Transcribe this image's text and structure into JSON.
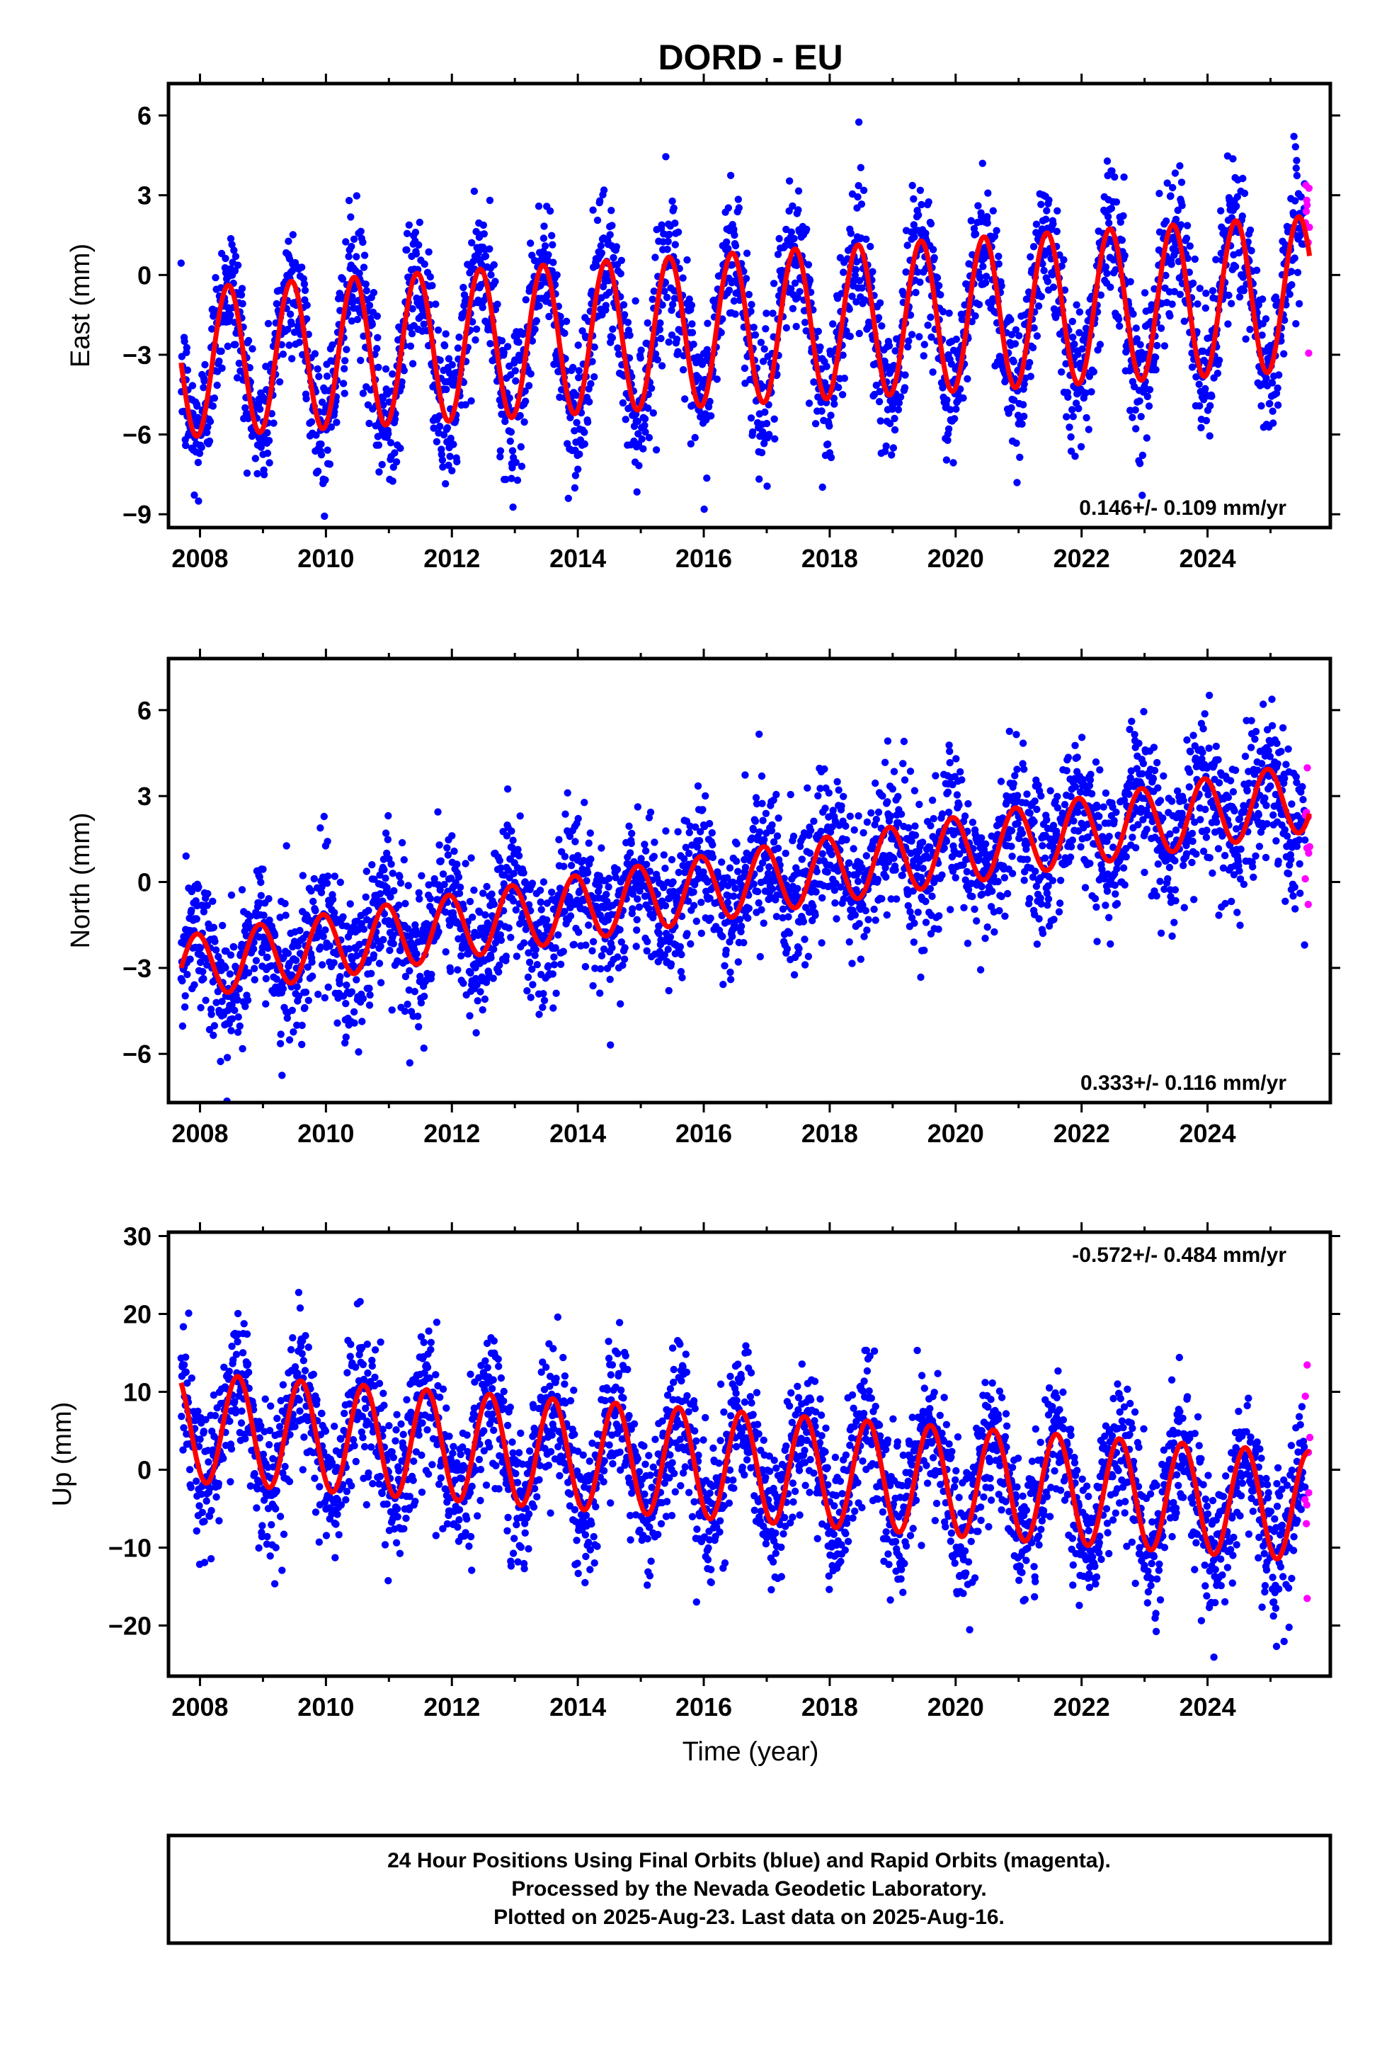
{
  "title": "DORD - EU",
  "xlabel": "Time (year)",
  "footer": [
    "24 Hour Positions Using Final Orbits (blue) and Rapid Orbits (magenta).",
    "Processed by the Nevada Geodetic Laboratory.",
    "Plotted on 2025-Aug-23. Last data on 2025-Aug-16."
  ],
  "colors": {
    "final_orbits": "#0000ff",
    "rapid_orbits": "#ff00ff",
    "model": "#ff0000",
    "frame": "#000000"
  },
  "chart_data": [
    {
      "type": "scatter",
      "component": "east",
      "ylabel": "East (mm)",
      "rate_label": "0.146+/- 0.109 mm/yr",
      "xlim": [
        2007.5,
        2025.95
      ],
      "ylim": [
        -9.5,
        7.2
      ],
      "x_ticks": [
        2008,
        2010,
        2012,
        2014,
        2016,
        2018,
        2020,
        2022,
        2024
      ],
      "y_ticks": [
        6,
        3,
        0,
        -3,
        -6,
        -9
      ],
      "data_start": 2007.7,
      "data_end": 2025.62,
      "rapid_start": 2025.55,
      "series": [
        {
          "name": "Final Orbits",
          "color": "#0000ff"
        },
        {
          "name": "Rapid Orbits",
          "color": "#ff00ff"
        },
        {
          "name": "Model",
          "color": "#ff0000",
          "start_value": -3.3,
          "rate": 0.146,
          "seasonal_amplitude_start": 2.8,
          "seasonal_amplitude_end": 2.9,
          "peak_month_fraction": 0.45,
          "scatter_sigma": 1.35
        }
      ],
      "grid": false
    },
    {
      "type": "scatter",
      "component": "north",
      "ylabel": "North (mm)",
      "rate_label": "0.333+/- 0.116 mm/yr",
      "xlim": [
        2007.5,
        2025.95
      ],
      "ylim": [
        -7.7,
        7.8
      ],
      "x_ticks": [
        2008,
        2010,
        2012,
        2014,
        2016,
        2018,
        2020,
        2022,
        2024
      ],
      "y_ticks": [
        6,
        3,
        0,
        -3,
        -6
      ],
      "data_start": 2007.7,
      "data_end": 2025.62,
      "rapid_start": 2025.55,
      "series": [
        {
          "name": "Final Orbits",
          "color": "#0000ff"
        },
        {
          "name": "Rapid Orbits",
          "color": "#ff00ff"
        },
        {
          "name": "Model",
          "color": "#ff0000",
          "start_value": -3.0,
          "rate": 0.333,
          "seasonal_amplitude_start": 1.1,
          "seasonal_amplitude_end": 1.2,
          "peak_month_fraction": 0.95,
          "scatter_sigma": 1.25
        }
      ],
      "grid": false
    },
    {
      "type": "scatter",
      "component": "up",
      "ylabel": "Up (mm)",
      "rate_label": "-0.572+/- 0.484 mm/yr",
      "xlim": [
        2007.5,
        2025.95
      ],
      "ylim": [
        -26.5,
        30.5
      ],
      "x_ticks": [
        2008,
        2010,
        2012,
        2014,
        2016,
        2018,
        2020,
        2022,
        2024
      ],
      "y_ticks": [
        30,
        20,
        10,
        0,
        -10,
        -20
      ],
      "data_start": 2007.7,
      "data_end": 2025.62,
      "rapid_start": 2025.55,
      "series": [
        {
          "name": "Final Orbits",
          "color": "#0000ff"
        },
        {
          "name": "Rapid Orbits",
          "color": "#ff00ff"
        },
        {
          "name": "Model",
          "color": "#ff0000",
          "start_value": 5.5,
          "rate": -0.572,
          "seasonal_amplitude_start": 7.0,
          "seasonal_amplitude_end": 7.0,
          "peak_month_fraction": 0.6,
          "scatter_sigma": 4.5
        }
      ],
      "grid": false
    }
  ]
}
